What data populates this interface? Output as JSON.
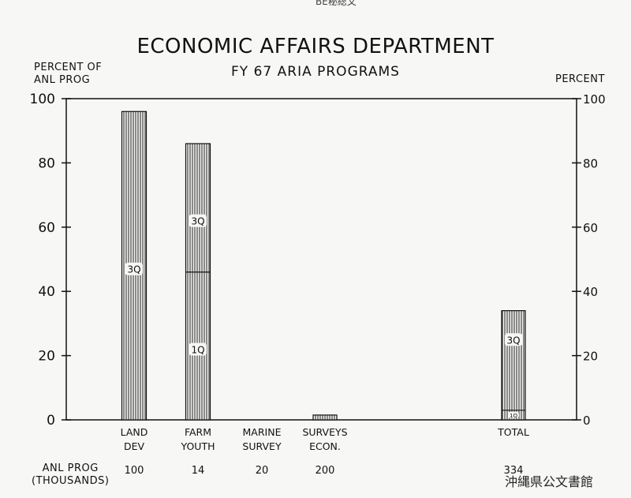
{
  "header_text": "BE秘総文",
  "chart_data": {
    "type": "bar",
    "title": "ECONOMIC AFFAIRS DEPARTMENT",
    "subtitle": "FY 67 ARIA PROGRAMS",
    "ylabel_left": [
      "PERCENT OF",
      "ANL PROG"
    ],
    "ylabel_right": "PERCENT",
    "ylim": [
      0,
      100
    ],
    "yticks": [
      0,
      20,
      40,
      60,
      80,
      100
    ],
    "footer_label": [
      "ANL  PROG",
      "(THOUSANDS)"
    ],
    "categories": [
      {
        "label": [
          "LAND",
          "DEV"
        ],
        "value": 96,
        "split": null,
        "segment_labels": [
          {
            "text": "3Q",
            "at": 47
          }
        ],
        "anl_prog": "100"
      },
      {
        "label": [
          "FARM",
          "YOUTH"
        ],
        "value": 86,
        "split": 46,
        "segment_labels": [
          {
            "text": "3Q",
            "at": 62
          },
          {
            "text": "1Q",
            "at": 22
          }
        ],
        "anl_prog": "14"
      },
      {
        "label": [
          "MARINE",
          "SURVEY"
        ],
        "value": 0,
        "split": null,
        "segment_labels": [],
        "anl_prog": "20"
      },
      {
        "label": [
          "SURVEYS",
          "ECON."
        ],
        "value": 1.5,
        "split": null,
        "segment_labels": [],
        "anl_prog": "200"
      },
      {
        "label": [
          "TOTAL"
        ],
        "value": 34,
        "split": 3,
        "segment_labels": [
          {
            "text": "3Q",
            "at": 25
          },
          {
            "text": "1Q",
            "at": 1.5
          }
        ],
        "anl_prog": "334"
      }
    ],
    "grid": false
  },
  "watermark": "沖縄県公文書館"
}
